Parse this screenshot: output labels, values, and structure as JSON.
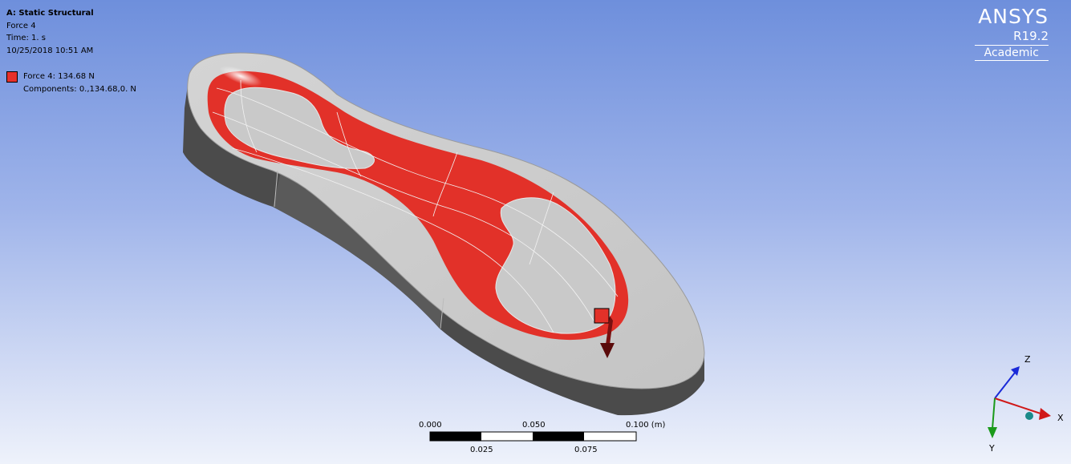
{
  "info": {
    "analysis_title": "A: Static Structural",
    "object_name": "Force 4",
    "time": "Time: 1. s",
    "timestamp": "10/25/2018 10:51 AM"
  },
  "legend": {
    "swatch_color": "#e8302a",
    "label": "Force 4: 134.68 N",
    "components": "Components: 0.,134.68,0. N"
  },
  "brand": {
    "name": "ANSYS",
    "version": "R19.2",
    "edition": "Academic"
  },
  "scale": {
    "top_labels": [
      "0.000",
      "0.050",
      "0.100 (m)"
    ],
    "bottom_labels": [
      "0.025",
      "0.075"
    ]
  },
  "triad": {
    "x": "X",
    "y": "Y",
    "z": "Z"
  },
  "colors": {
    "force_face": "#e8302a",
    "body": "#c9c9c9",
    "side": "#4a4a4a"
  },
  "icons": {
    "force_arrow": "down-arrow-icon",
    "triad": "axes-triad-icon"
  }
}
